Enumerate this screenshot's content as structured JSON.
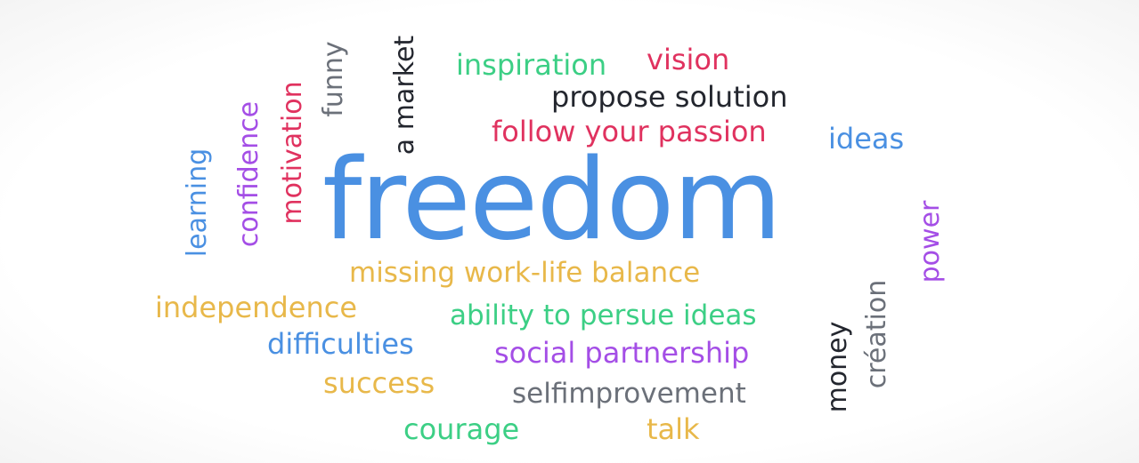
{
  "words": {
    "freedom": "freedom",
    "inspiration": "inspiration",
    "vision": "vision",
    "propose_solution": "propose solution",
    "follow_your_passion": "follow your passion",
    "ideas": "ideas",
    "a_market": "a market",
    "funny": "funny",
    "motivation": "motivation",
    "confidence": "confidence",
    "learning": "learning",
    "power": "power",
    "missing_work_life_balance": "missing work-life balance",
    "independence": "independence",
    "ability_to_persue_ideas": "ability to persue ideas",
    "difficulties": "difficulties",
    "social_partnership": "social partnership",
    "success": "success",
    "selfimprovement": "selfimprovement",
    "courage": "courage",
    "talk": "talk",
    "money": "money",
    "creation": "création"
  },
  "colors": {
    "blue": "#4a90e2",
    "red": "#e0325f",
    "green": "#3ccf85",
    "yellow": "#e8b84a",
    "purple": "#a44ee6",
    "dark": "#23262e",
    "gray": "#6b7079"
  }
}
